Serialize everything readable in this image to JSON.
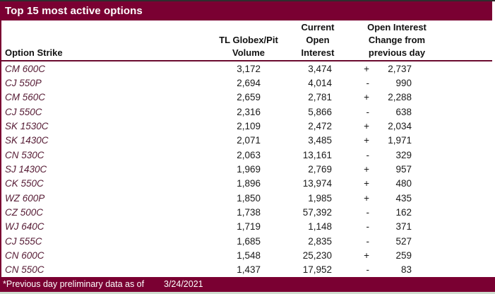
{
  "title": "Top 15 most active options",
  "colors": {
    "brand_maroon": "#7a0032",
    "header_rule": "#6b0a2e",
    "strike_text": "#551a33",
    "body_text": "#1a1a1a",
    "title_text": "#ffffff",
    "bottom_edge": "#cfdecf"
  },
  "table": {
    "headers": {
      "col1": "Option Strike",
      "col2_lines": [
        "TL Globex/Pit",
        "Volume"
      ],
      "col3_lines": [
        "Current",
        "Open",
        "Interest"
      ],
      "col4_lines": [
        "Open Interest",
        "Change from",
        "previous day"
      ]
    },
    "rows": [
      {
        "strike": "CM 600C",
        "volume": "3,172",
        "open_interest": "3,474",
        "change_sign": "+",
        "change_value": "2,737"
      },
      {
        "strike": "CJ 550P",
        "volume": "2,694",
        "open_interest": "4,014",
        "change_sign": "-",
        "change_value": "990"
      },
      {
        "strike": "CM 560C",
        "volume": "2,659",
        "open_interest": "2,781",
        "change_sign": "+",
        "change_value": "2,288"
      },
      {
        "strike": "CJ 550C",
        "volume": "2,316",
        "open_interest": "5,866",
        "change_sign": "-",
        "change_value": "638"
      },
      {
        "strike": "SK 1530C",
        "volume": "2,109",
        "open_interest": "2,472",
        "change_sign": "+",
        "change_value": "2,034"
      },
      {
        "strike": "SK 1430C",
        "volume": "2,071",
        "open_interest": "3,485",
        "change_sign": "+",
        "change_value": "1,971"
      },
      {
        "strike": "CN 530C",
        "volume": "2,063",
        "open_interest": "13,161",
        "change_sign": "-",
        "change_value": "329"
      },
      {
        "strike": "SJ 1430C",
        "volume": "1,969",
        "open_interest": "2,769",
        "change_sign": "+",
        "change_value": "957"
      },
      {
        "strike": "CK 550C",
        "volume": "1,896",
        "open_interest": "13,974",
        "change_sign": "+",
        "change_value": "480"
      },
      {
        "strike": "WZ 600P",
        "volume": "1,850",
        "open_interest": "1,985",
        "change_sign": "+",
        "change_value": "435"
      },
      {
        "strike": "CZ 500C",
        "volume": "1,738",
        "open_interest": "57,392",
        "change_sign": "-",
        "change_value": "162"
      },
      {
        "strike": "WJ 640C",
        "volume": "1,719",
        "open_interest": "1,148",
        "change_sign": "-",
        "change_value": "371"
      },
      {
        "strike": "CJ 555C",
        "volume": "1,685",
        "open_interest": "2,835",
        "change_sign": "-",
        "change_value": "527"
      },
      {
        "strike": "CN 600C",
        "volume": "1,548",
        "open_interest": "25,230",
        "change_sign": "+",
        "change_value": "259"
      },
      {
        "strike": "CN 550C",
        "volume": "1,437",
        "open_interest": "17,952",
        "change_sign": "-",
        "change_value": "83"
      }
    ]
  },
  "footer": {
    "note": "*Previous day preliminary data as of",
    "date": "3/24/2021"
  }
}
